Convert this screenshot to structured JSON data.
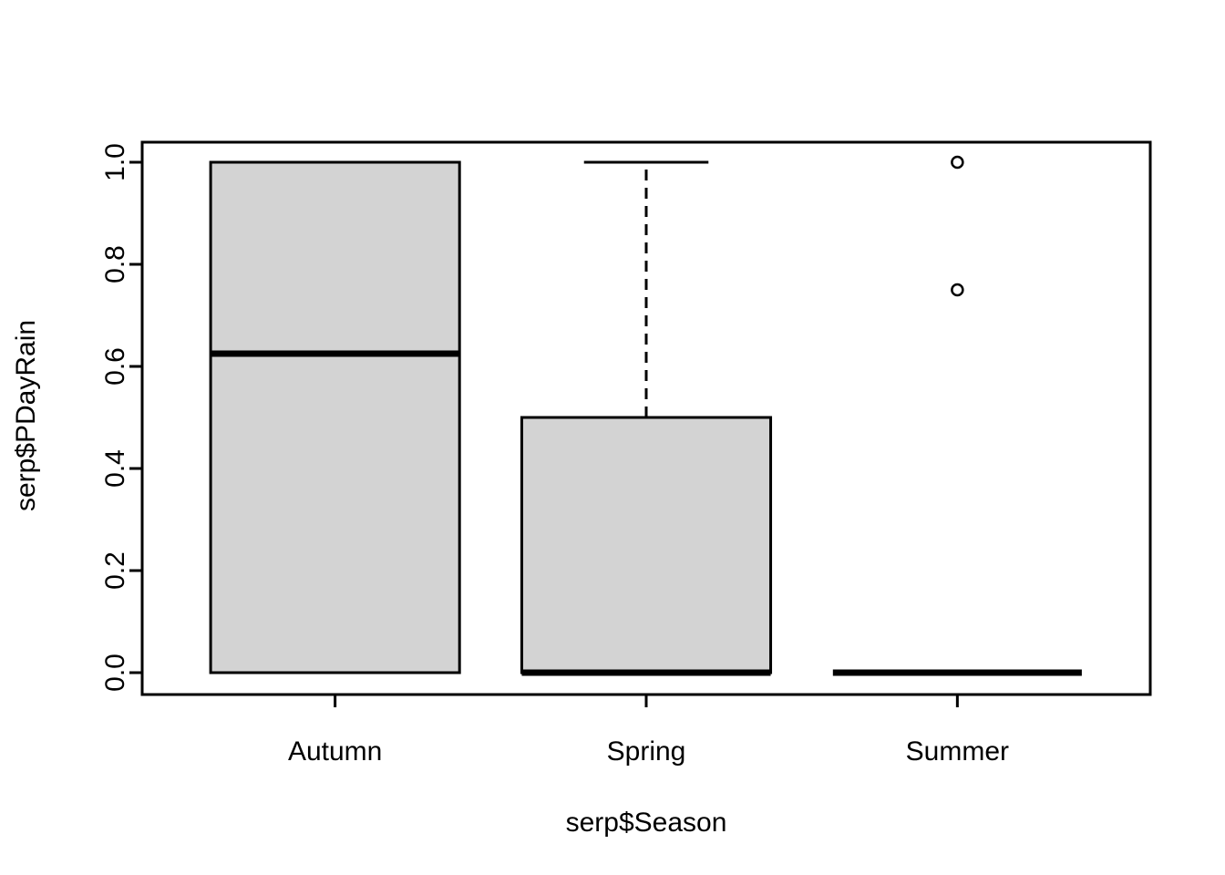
{
  "chart_data": {
    "type": "boxplot",
    "title": "",
    "xlabel": "serp$Season",
    "ylabel": "serp$PDayRain",
    "categories": [
      "Autumn",
      "Spring",
      "Summer"
    ],
    "yticks": [
      0.0,
      0.2,
      0.4,
      0.6,
      0.8,
      1.0
    ],
    "ytick_labels": [
      "0.0",
      "0.2",
      "0.4",
      "0.6",
      "0.8",
      "1.0"
    ],
    "ylim": [
      -0.04,
      1.04
    ],
    "grid": false,
    "legend": null,
    "series": [
      {
        "name": "Autumn",
        "q1": 0.0,
        "median": 0.625,
        "q3": 1.0,
        "whisker_low": 0.0,
        "whisker_high": 1.0,
        "outliers": []
      },
      {
        "name": "Spring",
        "q1": 0.0,
        "median": 0.0,
        "q3": 0.5,
        "whisker_low": 0.0,
        "whisker_high": 1.0,
        "outliers": []
      },
      {
        "name": "Summer",
        "q1": 0.0,
        "median": 0.0,
        "q3": 0.0,
        "whisker_low": 0.0,
        "whisker_high": 0.0,
        "outliers": [
          0.75,
          1.0
        ]
      }
    ],
    "colors": {
      "box_fill": "#D3D3D3",
      "stroke": "#000000",
      "background": "#FFFFFF"
    }
  }
}
